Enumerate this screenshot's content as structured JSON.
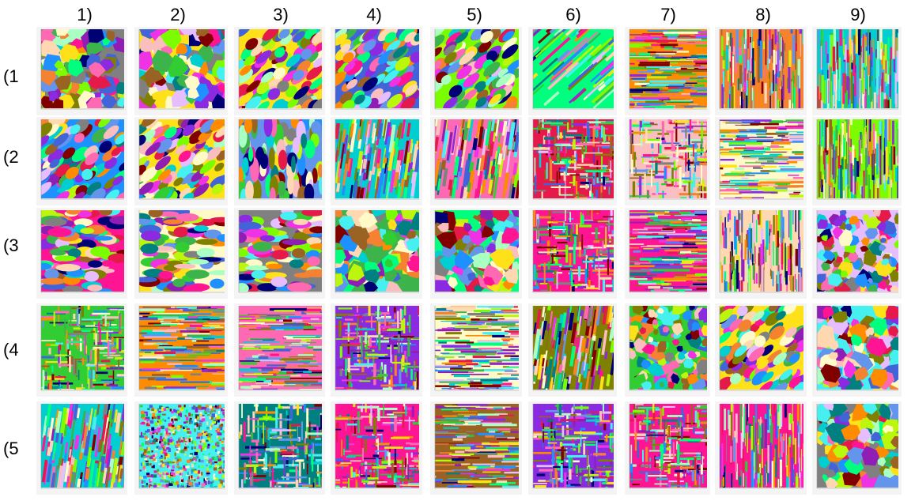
{
  "columns": [
    "1)",
    "2)",
    "3)",
    "4)",
    "5)",
    "6)",
    "7)",
    "8)",
    "9)"
  ],
  "rows": [
    "(1",
    "(2",
    "(3",
    "(4",
    "(5"
  ],
  "tile_styles": [
    [
      "blobs",
      "blobs",
      "diagonal-blobs",
      "diagonal-blobs",
      "diagonal-blobs",
      "diagonal-streaks",
      "horizontal-bars",
      "vertical-bars",
      "vertical-bars"
    ],
    [
      "diagonal-blobs",
      "diagonal-blobs",
      "vertical-blobs",
      "vertical-streaks",
      "vertical-streaks",
      "mixed-bars",
      "mixed-bars",
      "horizontal-bars",
      "vertical-bars"
    ],
    [
      "horizontal-blobs",
      "horizontal-blobs",
      "horizontal-blobs",
      "blobs",
      "blobs",
      "mixed-bars",
      "horizontal-bars",
      "vertical-bars",
      "mixed-blobs"
    ],
    [
      "mixed-bars",
      "horizontal-bars",
      "horizontal-bars",
      "mixed-bars",
      "horizontal-bars",
      "vertical-streaks",
      "mixed-blobs",
      "diagonal-blobs",
      "blobs"
    ],
    [
      "vertical-streaks",
      "noise",
      "mixed-bars",
      "mixed-bars",
      "horizontal-bars",
      "mixed-bars",
      "mixed-bars",
      "vertical-bars",
      "blobs"
    ]
  ],
  "palette": [
    "#e6194b",
    "#3cb44b",
    "#ffe119",
    "#4363d8",
    "#f58231",
    "#911eb4",
    "#46f0f0",
    "#f032e6",
    "#bcf60c",
    "#fabebe",
    "#008080",
    "#e6beff",
    "#9a6324",
    "#fffac8",
    "#800000",
    "#aaffc3",
    "#808000",
    "#ffd8b1",
    "#000075",
    "#808080",
    "#00ff7f",
    "#ff1493",
    "#1e90ff",
    "#7cfc00",
    "#ff8c00",
    "#8a2be2",
    "#00ced1",
    "#ff69b4",
    "#32cd32",
    "#6495ed"
  ]
}
